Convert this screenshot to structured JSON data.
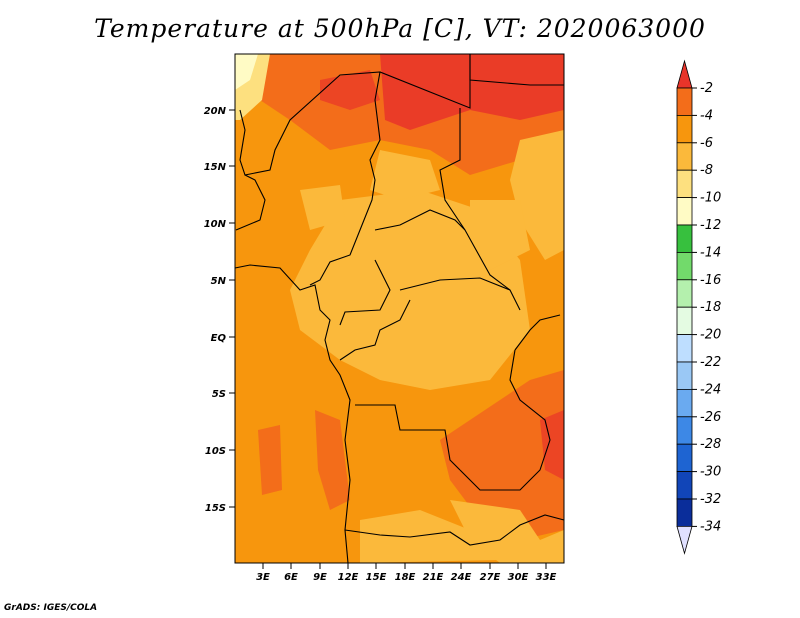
{
  "title": "Temperature at 500hPa [C], VT: 2020063000",
  "credit": "GrADS: IGES/COLA",
  "axes": {
    "x_ticks": [
      "3E",
      "6E",
      "9E",
      "12E",
      "15E",
      "18E",
      "21E",
      "24E",
      "27E",
      "30E",
      "33E"
    ],
    "y_ticks": [
      "20N",
      "15N",
      "10N",
      "5N",
      "EQ",
      "5S",
      "10S",
      "15S"
    ]
  },
  "colorbar": {
    "labels": [
      "-2",
      "-4",
      "-6",
      "-8",
      "-10",
      "-12",
      "-14",
      "-16",
      "-18",
      "-20",
      "-22",
      "-24",
      "-26",
      "-28",
      "-30",
      "-32",
      "-34"
    ],
    "colors": [
      "#e8342a",
      "#f36d1a",
      "#f7960d",
      "#fbb93b",
      "#fde07f",
      "#fffbc5",
      "#37c03e",
      "#72da6b",
      "#b4f0ad",
      "#e4fbe2",
      "#bedeff",
      "#9ac8f5",
      "#6aaaf0",
      "#3d88e6",
      "#1e64d2",
      "#1145b8",
      "#0a2d9a",
      "#10147a",
      "#e0e0ff"
    ]
  },
  "map_colors": {
    "c2": "#f36d1a",
    "c4": "#f7960d",
    "c6": "#fbb93b",
    "c8": "#fde07f",
    "c10": "#fffbc5",
    "c0": "#e8342a"
  }
}
